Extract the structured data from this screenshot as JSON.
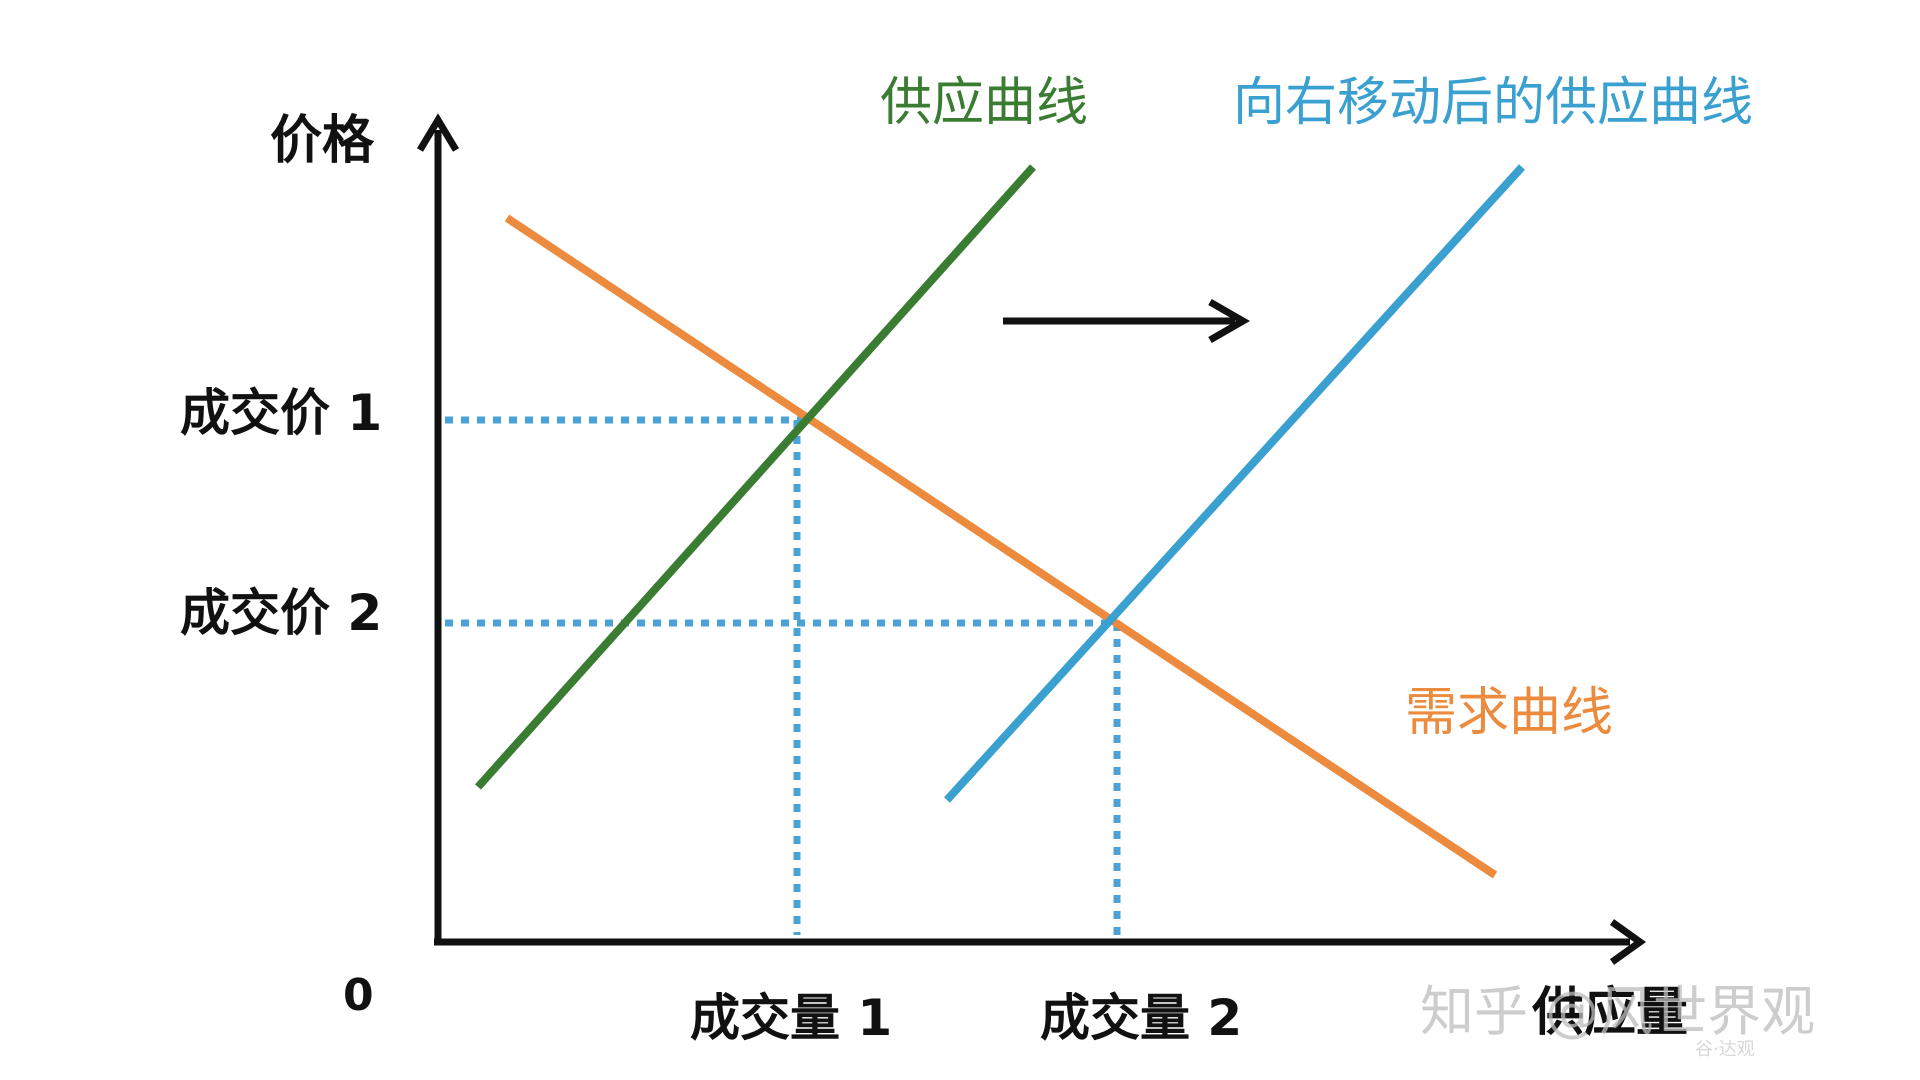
{
  "axes": {
    "y_label": "价格",
    "x_label": "供应量",
    "origin_label": "0"
  },
  "curves": {
    "supply_label": "供应曲线",
    "shifted_supply_label": "向右移动后的供应曲线",
    "demand_label": "需求曲线"
  },
  "price_labels": [
    "成交价 1",
    "成交价 2"
  ],
  "quantity_labels": [
    "成交量 1",
    "成交量 2"
  ],
  "watermark": {
    "text": "知乎 @风世界观",
    "subtext": "谷·达观"
  },
  "colors": {
    "supply": "#3a7d32",
    "shifted_supply": "#3aa0d0",
    "demand": "#ec8a3d",
    "axis": "#111111",
    "guides": "#4aa3d4"
  }
}
